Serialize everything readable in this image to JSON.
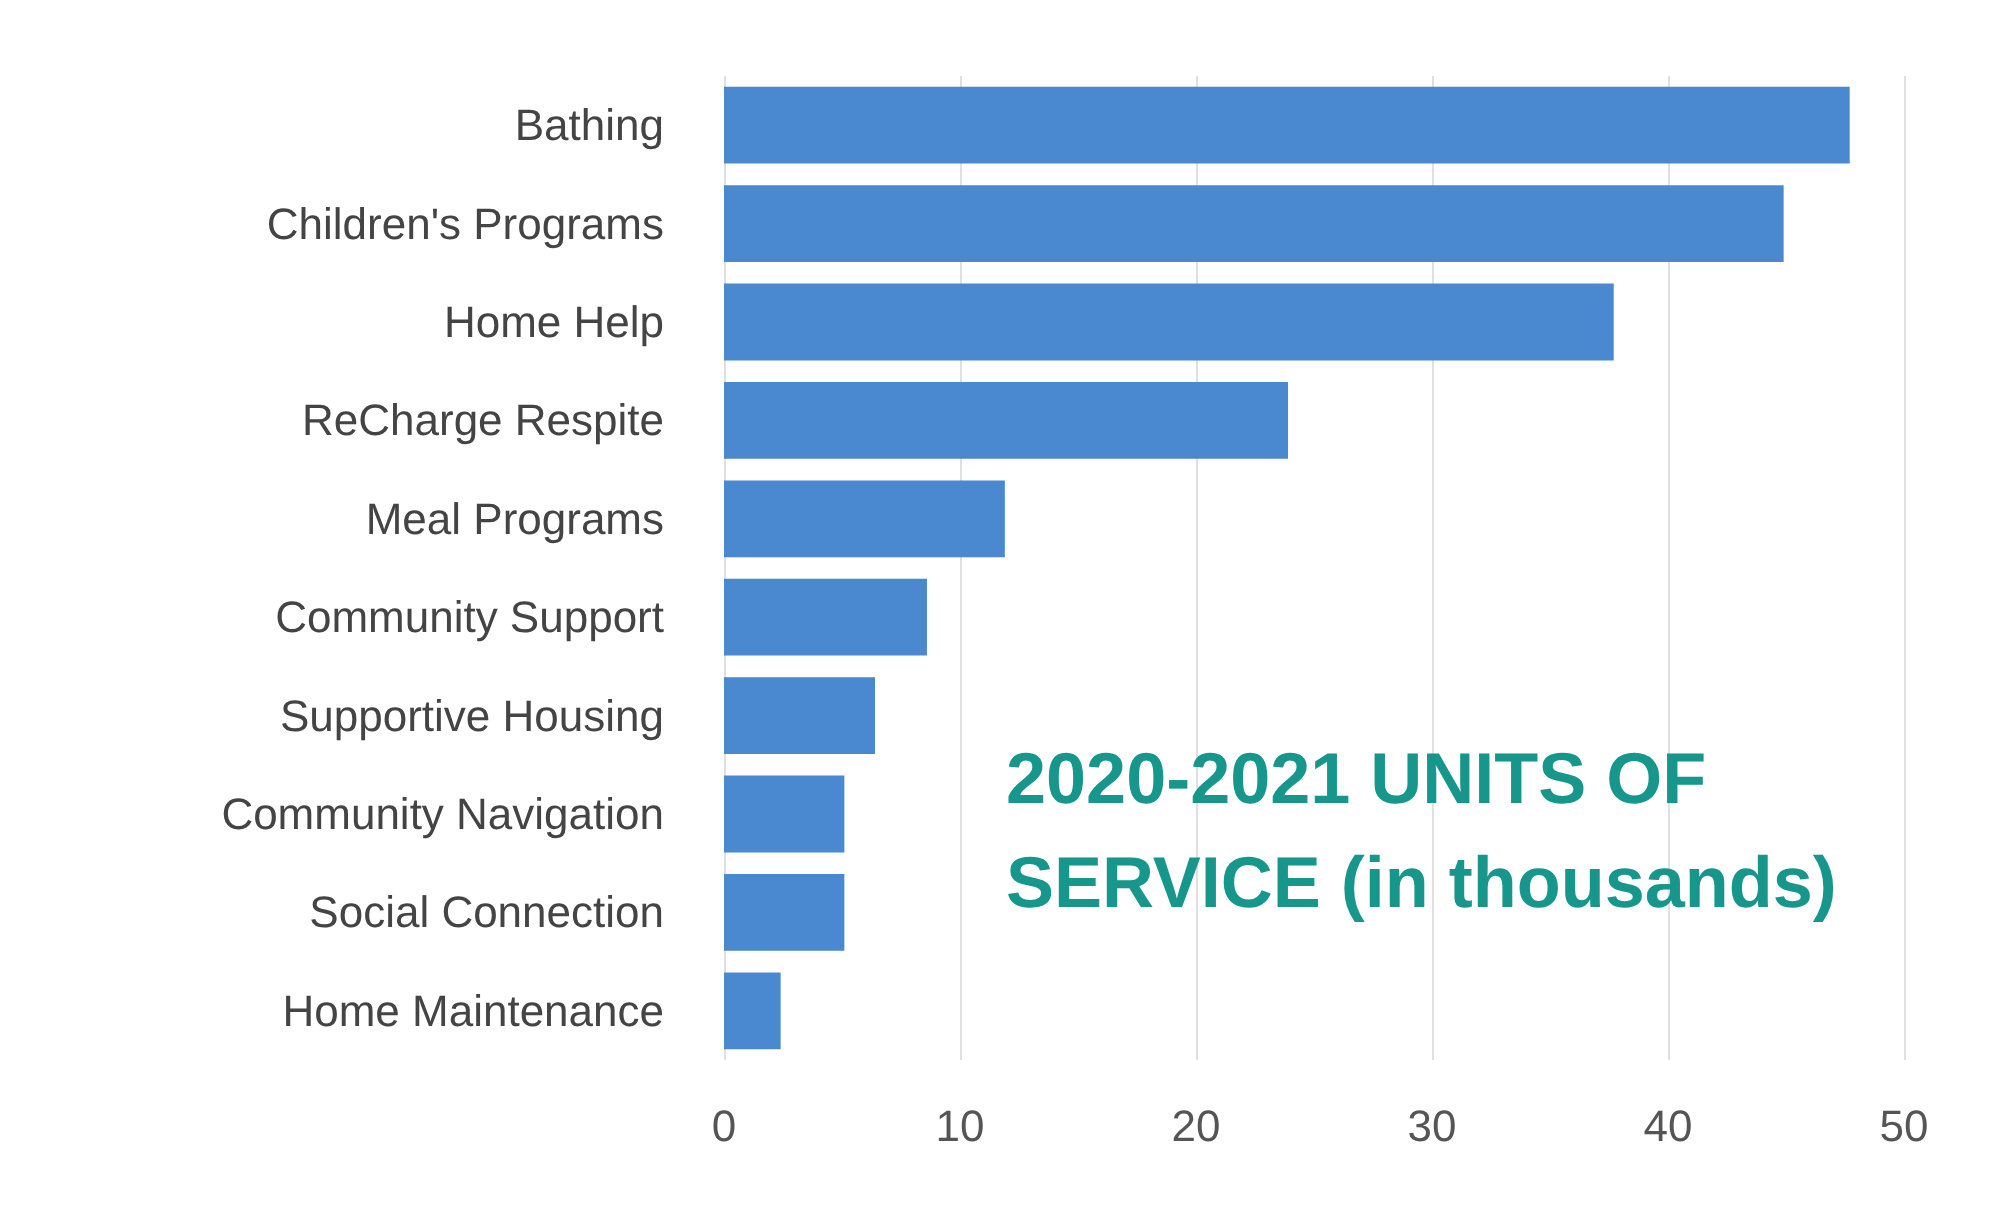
{
  "chart_data": {
    "type": "bar",
    "orientation": "horizontal",
    "title": "2020-2021 UNITS OF SERVICE (in thousands)",
    "categories": [
      "Bathing",
      "Children's Programs",
      "Home Help",
      "ReCharge Respite",
      "Meal Programs",
      "Community Support",
      "Supportive Housing",
      "Community Navigation",
      "Social Connection",
      "Home Maintenance"
    ],
    "values": [
      47.7,
      44.9,
      37.7,
      23.9,
      11.9,
      8.6,
      6.4,
      5.1,
      5.1,
      2.4
    ],
    "color": "#4a89d0",
    "xlim": [
      0,
      50
    ],
    "xticks": [
      0,
      10,
      20,
      30,
      40,
      50
    ],
    "grid": "x"
  }
}
